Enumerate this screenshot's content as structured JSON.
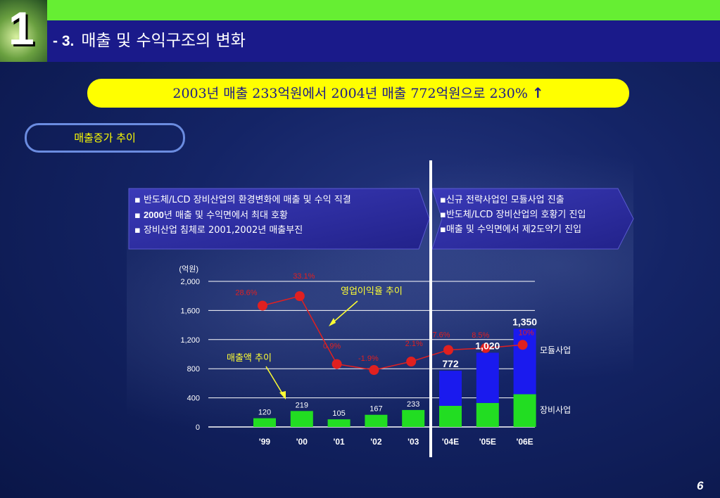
{
  "header": {
    "logo_number": "1",
    "title_prefix": "- 3.",
    "title": "매출 및 수익구조의 변화"
  },
  "banner": {
    "text": "2003년 매출 233억원에서 2004년 매출 772억원으로 230%",
    "arrow": "↑"
  },
  "pill": {
    "label": "매출증가 추이"
  },
  "left_box": {
    "items": [
      {
        "bullet": "▪",
        "bold": "",
        "text": "반도체/LCD 장비산업의 환경변화에 매출 및 수익 직결"
      },
      {
        "bullet": "▪",
        "bold": "2000",
        "text": "년 매출 및 수익면에서 최대 호황"
      },
      {
        "bullet": "▪",
        "bold": "",
        "text": "장비산업 침체로  2001,2002년 매출부진"
      }
    ]
  },
  "right_box": {
    "items": [
      {
        "bullet": "▪",
        "text": "신규 전략사업인 모듈사업 진출"
      },
      {
        "bullet": "▪",
        "text": "반도체/LCD 장비산업의 호황기 진입"
      },
      {
        "bullet": "▪",
        "text": "매출 및 수익면에서 제2도약기 진입"
      }
    ]
  },
  "page_number": "6",
  "colors": {
    "equipment": "#22dd22",
    "module": "#1a1aee",
    "margin_line": "#e02020",
    "banner": "#ffff00"
  },
  "chart_data": {
    "type": "bar",
    "unit_label": "(억원)",
    "categories": [
      "'99",
      "'00",
      "'01",
      "'02",
      "'03",
      "'04E",
      "'05E",
      "'06E"
    ],
    "ylim": [
      0,
      2000
    ],
    "yticks": [
      0,
      400,
      800,
      1200,
      1600,
      2000
    ],
    "ytick_labels": [
      "0",
      "400",
      "800",
      "1,200",
      "1,600",
      "2,000"
    ],
    "series": [
      {
        "name": "장비사업",
        "values": [
          120,
          219,
          105,
          167,
          233,
          290,
          330,
          450
        ]
      },
      {
        "name": "모듈사업",
        "values": [
          0,
          0,
          0,
          0,
          0,
          482,
          690,
          900
        ]
      }
    ],
    "total_labels": [
      "120",
      "219",
      "105",
      "167",
      "233",
      "772",
      "1,020",
      "1,350"
    ],
    "operating_margin": {
      "values_pct": [
        28.6,
        33.1,
        0.9,
        -1.9,
        2.1,
        7.6,
        8.5,
        10
      ],
      "labels": [
        "28.6%",
        "33.1%",
        "0.9%",
        "-1.9%",
        "2.1%",
        "7.6%",
        "8.5%",
        "10%"
      ]
    },
    "annotations": {
      "margin_trend": "영업이익율 추이",
      "sales_trend": "매출액 추이"
    }
  }
}
